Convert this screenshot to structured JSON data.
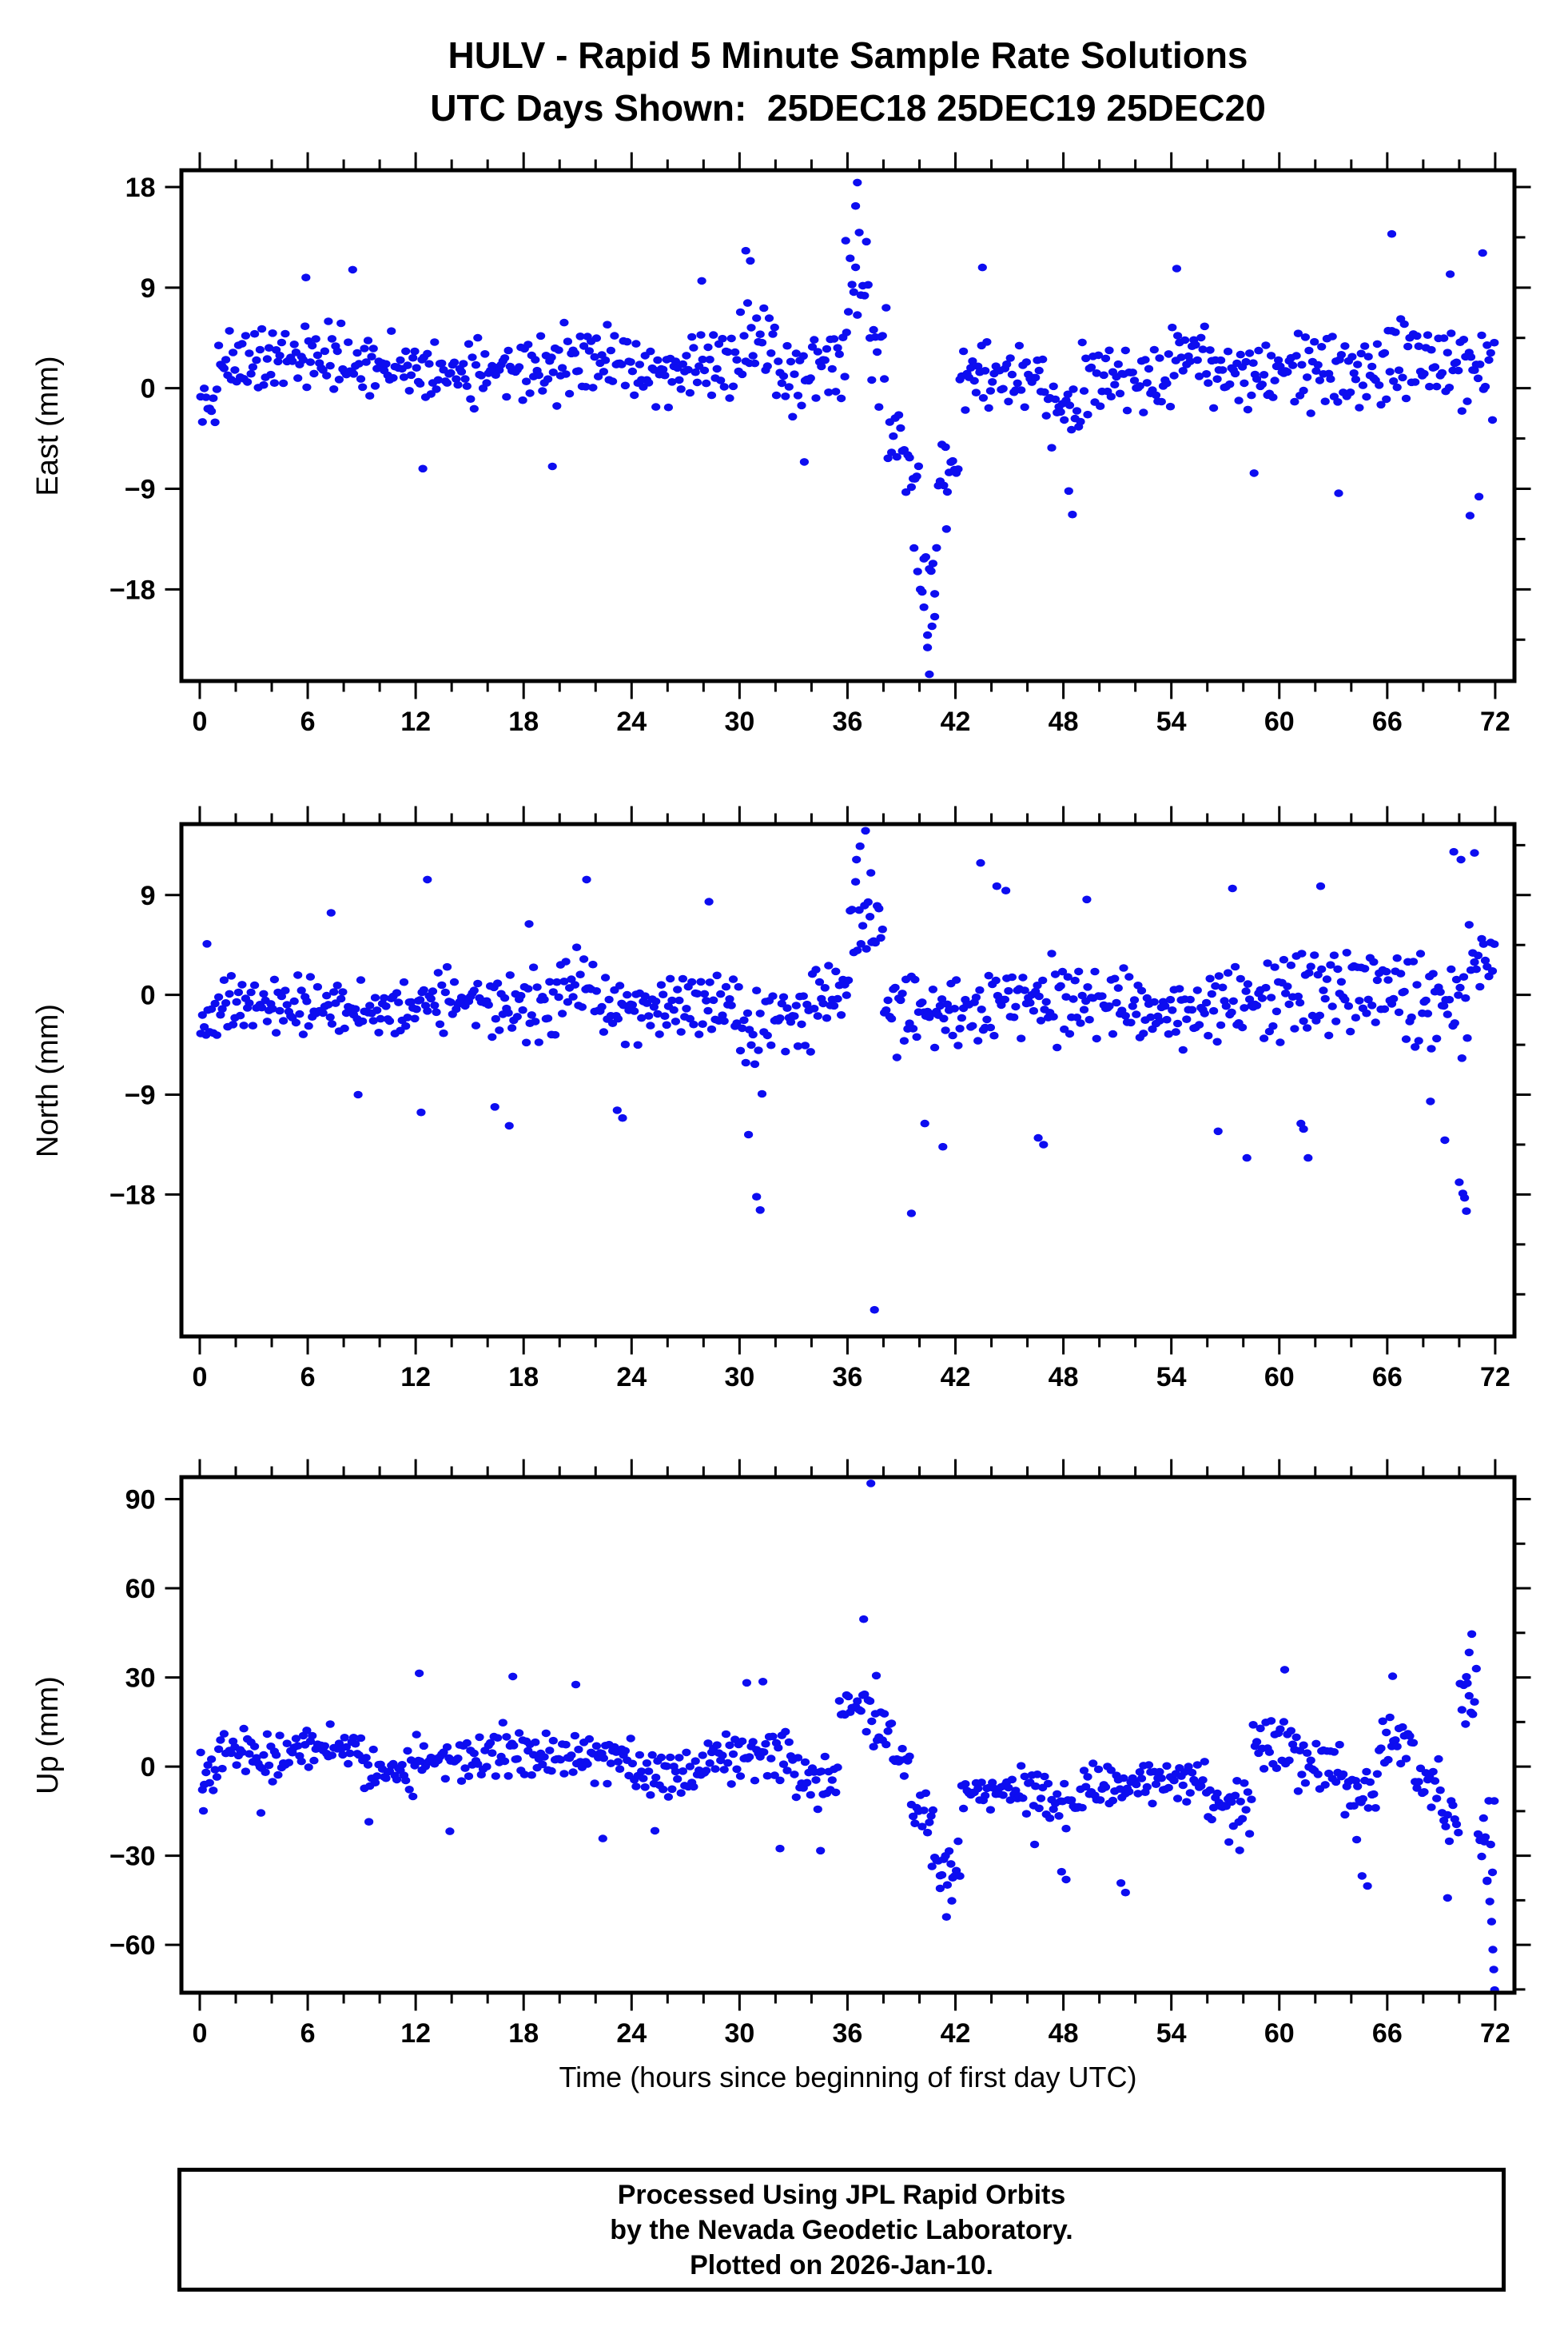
{
  "header": {
    "title": "HULV - Rapid 5 Minute Sample Rate Solutions",
    "subtitle": "UTC Days Shown:  25DEC18 25DEC19 25DEC20",
    "station_id": "HULV"
  },
  "xaxis_title": "Time (hours since beginning of first day UTC)",
  "footer": {
    "line1": "Processed Using JPL Rapid Orbits",
    "line2": "by the Nevada Geodetic Laboratory.",
    "line3": "Plotted on 2026-Jan-10."
  },
  "colors": {
    "dot": "#0d0df0",
    "frame": "#000000",
    "background": "#ffffff"
  },
  "chart_data": {
    "type": "scatter",
    "title": "HULV - Rapid 5 Minute Sample Rate Solutions",
    "subtitle": "UTC Days Shown:  25DEC18 25DEC19 25DEC20",
    "xlabel": "Time (hours since beginning of first day UTC)",
    "x_unit": "hours",
    "xlim": [
      -1.02,
      73.07
    ],
    "xticks_major": [
      0,
      6,
      12,
      18,
      24,
      30,
      36,
      42,
      48,
      54,
      60,
      66,
      72
    ],
    "xtick_minor_step": 2,
    "sample_step_hours": 0.1,
    "marker": "filled-ellipse",
    "grid": false,
    "legend": "none",
    "noise48": [
      0.12,
      -0.45,
      0.78,
      -0.22,
      0.05,
      0.6,
      -0.85,
      0.3,
      -0.6,
      0.15,
      0.95,
      -0.35,
      0.5,
      -0.75,
      0.22,
      -0.08,
      0.68,
      -0.5,
      0.1,
      0.42,
      -0.95,
      0.25,
      -0.3,
      0.85,
      -0.15,
      0.55,
      -0.65,
      0.02,
      0.38,
      -0.42,
      0.72,
      -0.2,
      -0.55,
      0.45,
      0.9,
      -0.7,
      0.18,
      -0.28,
      0.62,
      -0.1,
      0.35,
      -0.88,
      0.08,
      0.52,
      -0.38,
      0.75,
      -0.58,
      0.28
    ],
    "noise31": [
      0.4,
      -0.6,
      0.2,
      0.75,
      -0.3,
      -0.9,
      0.55,
      0.1,
      -0.45,
      0.85,
      -0.15,
      0.35,
      -0.7,
      0.6,
      -0.05,
      -0.5,
      0.9,
      -0.25,
      0.45,
      -0.8,
      0.15,
      0.65,
      -0.35,
      0.05,
      -0.6,
      0.8,
      -0.2,
      0.5,
      -0.95,
      0.3,
      0.7
    ],
    "noise_weights": [
      0.62,
      0.55
    ],
    "panels": [
      {
        "name": "east",
        "ylabel": "East (mm)",
        "ylim": [
          -26.2,
          19.5
        ],
        "yticks": [
          -18,
          -9,
          0,
          9,
          18
        ],
        "ytick_minor_step": 4.5,
        "band_segments": [
          [
            0,
            1,
            -1.5,
            2.5
          ],
          [
            1,
            4,
            2.2,
            3.2
          ],
          [
            4,
            8,
            2.6,
            3.4
          ],
          [
            8,
            12,
            1.8,
            3.6
          ],
          [
            12,
            16,
            1.2,
            3.4
          ],
          [
            16,
            20,
            1.6,
            3.5
          ],
          [
            20,
            24,
            2.4,
            3.2
          ],
          [
            24,
            27,
            1.2,
            3
          ],
          [
            27,
            30,
            2,
            3.6
          ],
          [
            30,
            32,
            4,
            4.2
          ],
          [
            32,
            34,
            0.8,
            3.4
          ],
          [
            34,
            36,
            2.2,
            3.6
          ],
          [
            36,
            37.2,
            9.5,
            5
          ],
          [
            37.2,
            38.2,
            3,
            4.5
          ],
          [
            38.2,
            39.2,
            -4.5,
            4
          ],
          [
            39.2,
            40,
            -8,
            4.5
          ],
          [
            40,
            41,
            -17.5,
            5
          ],
          [
            41,
            42.2,
            -7.5,
            3.5
          ],
          [
            42.2,
            44,
            1,
            4
          ],
          [
            44,
            47,
            0.8,
            3.4
          ],
          [
            47,
            49,
            -2,
            4.2
          ],
          [
            49,
            52,
            0.8,
            3.2
          ],
          [
            52,
            54,
            0.4,
            3.4
          ],
          [
            54,
            56,
            3,
            3.8
          ],
          [
            56,
            58,
            1.2,
            3.2
          ],
          [
            58,
            60,
            1,
            3.4
          ],
          [
            60,
            63,
            1.6,
            3.6
          ],
          [
            63,
            66,
            1.2,
            3.2
          ],
          [
            66,
            68,
            2.6,
            4.4
          ],
          [
            68,
            70,
            2,
            3.4
          ],
          [
            70,
            72,
            1.6,
            5.2
          ]
        ],
        "outliers": [
          [
            36.55,
            18.4
          ],
          [
            36.45,
            16.3
          ],
          [
            35.9,
            13.2
          ],
          [
            30.35,
            12.3
          ],
          [
            30.6,
            11.4
          ],
          [
            40.55,
            -25.6
          ],
          [
            40.45,
            -23.2
          ],
          [
            40.7,
            -21.3
          ],
          [
            40.25,
            -19.6
          ],
          [
            40.85,
            -18.4
          ],
          [
            39.9,
            -16.4
          ],
          [
            39.7,
            -14.3
          ],
          [
            41.5,
            -12.6
          ],
          [
            48.5,
            -11.3
          ],
          [
            48.3,
            -9.2
          ],
          [
            66.25,
            13.8
          ],
          [
            71.3,
            12.1
          ],
          [
            70.6,
            -11.4
          ],
          [
            71.1,
            -9.7
          ],
          [
            63.3,
            -9.4
          ],
          [
            8.5,
            10.6
          ],
          [
            54.3,
            10.7
          ],
          [
            43.5,
            10.8
          ],
          [
            27.9,
            9.6
          ],
          [
            5.9,
            9.9
          ],
          [
            69.5,
            10.2
          ],
          [
            58.6,
            -7.6
          ],
          [
            12.4,
            -7.2
          ],
          [
            19.6,
            -7
          ],
          [
            33.6,
            -6.6
          ]
        ]
      },
      {
        "name": "north",
        "ylabel": "North (mm)",
        "ylim": [
          -30.8,
          15.4
        ],
        "yticks": [
          -18,
          -9,
          0,
          9
        ],
        "ytick_minor_step": 4.5,
        "band_segments": [
          [
            0,
            1,
            -2.5,
            2.2
          ],
          [
            1,
            4,
            -1,
            2.8
          ],
          [
            4,
            8,
            -1.2,
            3
          ],
          [
            8,
            12,
            -1.6,
            3.2
          ],
          [
            12,
            16,
            -0.6,
            3.2
          ],
          [
            16,
            20,
            -1.2,
            3.4
          ],
          [
            20,
            22,
            0.8,
            3.4
          ],
          [
            22,
            26,
            -1.4,
            3.2
          ],
          [
            26,
            30,
            -1,
            3.2
          ],
          [
            30,
            31.5,
            -4,
            5
          ],
          [
            31.5,
            34,
            -2.2,
            3.4
          ],
          [
            34,
            36,
            -0.2,
            3.2
          ],
          [
            36,
            38,
            6,
            4.5
          ],
          [
            38,
            40,
            -1.5,
            4.5
          ],
          [
            40,
            44,
            -1.8,
            4
          ],
          [
            44,
            48,
            -0.6,
            4.2
          ],
          [
            48,
            52,
            -0.8,
            3.6
          ],
          [
            52,
            56,
            -1.8,
            3.4
          ],
          [
            56,
            60,
            -0.8,
            4
          ],
          [
            60,
            64,
            0.2,
            4.2
          ],
          [
            64,
            67,
            0.4,
            3.6
          ],
          [
            67,
            70.5,
            -1,
            5.5
          ],
          [
            70.5,
            72,
            3,
            3.5
          ]
        ],
        "outliers": [
          [
            36.7,
            13.4
          ],
          [
            37,
            14.8
          ],
          [
            36.5,
            12.2
          ],
          [
            37.3,
            11
          ],
          [
            12.65,
            10.4
          ],
          [
            21.5,
            10.4
          ],
          [
            37.5,
            -28.4
          ],
          [
            39.55,
            -19.7
          ],
          [
            30.95,
            -18.2
          ],
          [
            31.15,
            -19.4
          ],
          [
            30.5,
            -12.6
          ],
          [
            12.3,
            -10.6
          ],
          [
            16.4,
            -10.1
          ],
          [
            17.2,
            -11.8
          ],
          [
            23.2,
            -10.4
          ],
          [
            23.5,
            -11.1
          ],
          [
            8.8,
            -9
          ],
          [
            43.4,
            11.9
          ],
          [
            44.3,
            9.8
          ],
          [
            44.8,
            9.4
          ],
          [
            46.6,
            -12.9
          ],
          [
            46.9,
            -13.5
          ],
          [
            40.3,
            -11.6
          ],
          [
            41.3,
            -13.7
          ],
          [
            56.6,
            -12.3
          ],
          [
            58.2,
            -14.7
          ],
          [
            61.2,
            -11.6
          ],
          [
            61.35,
            -12.1
          ],
          [
            61.6,
            -14.7
          ],
          [
            57.4,
            9.6
          ],
          [
            62.3,
            9.8
          ],
          [
            69.7,
            12.9
          ],
          [
            70.1,
            12.2
          ],
          [
            68.4,
            -9.6
          ],
          [
            69.2,
            -13.1
          ],
          [
            70,
            -16.9
          ],
          [
            70.2,
            -17.9
          ],
          [
            70.3,
            -18.3
          ],
          [
            70.4,
            -19.5
          ],
          [
            70.85,
            12.8
          ],
          [
            49.3,
            8.6
          ],
          [
            28.3,
            8.4
          ],
          [
            18.3,
            6.4
          ],
          [
            7.3,
            7.4
          ],
          [
            0.4,
            4.6
          ]
        ]
      },
      {
        "name": "up",
        "ylabel": "Up (mm)",
        "ylim": [
          -76.1,
          97.4
        ],
        "yticks": [
          -60,
          -30,
          0,
          30,
          60,
          90
        ],
        "ytick_minor_step": 15,
        "band_segments": [
          [
            0,
            1,
            -3,
            8
          ],
          [
            1,
            3,
            5,
            9
          ],
          [
            3,
            5,
            2,
            9
          ],
          [
            5,
            9,
            6,
            9
          ],
          [
            9,
            12,
            -2,
            9
          ],
          [
            12,
            16,
            2,
            9
          ],
          [
            16,
            18,
            5,
            9
          ],
          [
            18,
            21,
            3,
            8
          ],
          [
            21,
            24,
            3,
            9
          ],
          [
            24,
            28,
            -3,
            9
          ],
          [
            28,
            31,
            3,
            9
          ],
          [
            31,
            33,
            4,
            10
          ],
          [
            33,
            35.5,
            -5,
            9
          ],
          [
            35.5,
            37.3,
            20,
            9
          ],
          [
            37.3,
            38.5,
            12,
            9
          ],
          [
            38.5,
            39.5,
            2,
            7
          ],
          [
            39.5,
            40.8,
            -16,
            9
          ],
          [
            40.8,
            42.3,
            -34,
            10
          ],
          [
            42.3,
            44.5,
            -9,
            7
          ],
          [
            44.5,
            47,
            -8,
            8
          ],
          [
            47,
            49,
            -13,
            9
          ],
          [
            49,
            52,
            -7,
            9
          ],
          [
            52,
            56,
            -5,
            8
          ],
          [
            56,
            58.5,
            -13,
            9
          ],
          [
            58.5,
            61,
            7,
            10
          ],
          [
            61,
            63.5,
            0,
            9
          ],
          [
            63.5,
            65.5,
            -9,
            9
          ],
          [
            65.5,
            67.5,
            8,
            10
          ],
          [
            67.5,
            69,
            -6,
            9
          ],
          [
            69,
            70,
            -18,
            11
          ],
          [
            70,
            71,
            22,
            12
          ],
          [
            71,
            72,
            -25,
            18
          ]
        ],
        "outliers": [
          [
            37.3,
            95.3
          ],
          [
            36.9,
            49.6
          ],
          [
            37.6,
            30.6
          ],
          [
            12.2,
            31.4
          ],
          [
            17.4,
            30.3
          ],
          [
            20.9,
            27.6
          ],
          [
            31.3,
            28.6
          ],
          [
            30.4,
            28.2
          ],
          [
            60.3,
            32.6
          ],
          [
            66.3,
            30.4
          ],
          [
            70.7,
            44.6
          ],
          [
            70.55,
            38.4
          ],
          [
            70.4,
            30.2
          ],
          [
            41.5,
            -50.6
          ],
          [
            41.8,
            -45.2
          ],
          [
            41.15,
            -41
          ],
          [
            40.7,
            -33.6
          ],
          [
            47.9,
            -35.4
          ],
          [
            48.15,
            -38
          ],
          [
            51.2,
            -39.2
          ],
          [
            51.45,
            -42.4
          ],
          [
            64.6,
            -36.8
          ],
          [
            64.9,
            -40.2
          ],
          [
            69.35,
            -44.2
          ],
          [
            57.8,
            -28.2
          ],
          [
            34.5,
            -28.3
          ],
          [
            32.25,
            -27.6
          ],
          [
            22.4,
            -24.2
          ],
          [
            25.3,
            -21.6
          ],
          [
            71.4,
            -25.3
          ],
          [
            71.55,
            -38.3
          ],
          [
            71.7,
            -45.4
          ],
          [
            71.8,
            -52.2
          ],
          [
            71.87,
            -61.6
          ],
          [
            71.92,
            -68.3
          ],
          [
            71.97,
            -75.2
          ],
          [
            9.4,
            -18.6
          ],
          [
            13.9,
            -21.8
          ],
          [
            0.2,
            -14.9
          ],
          [
            3.4,
            -15.6
          ],
          [
            46.4,
            -26.2
          ],
          [
            57.2,
            -25.4
          ],
          [
            64.3,
            -24.6
          ]
        ]
      }
    ]
  }
}
